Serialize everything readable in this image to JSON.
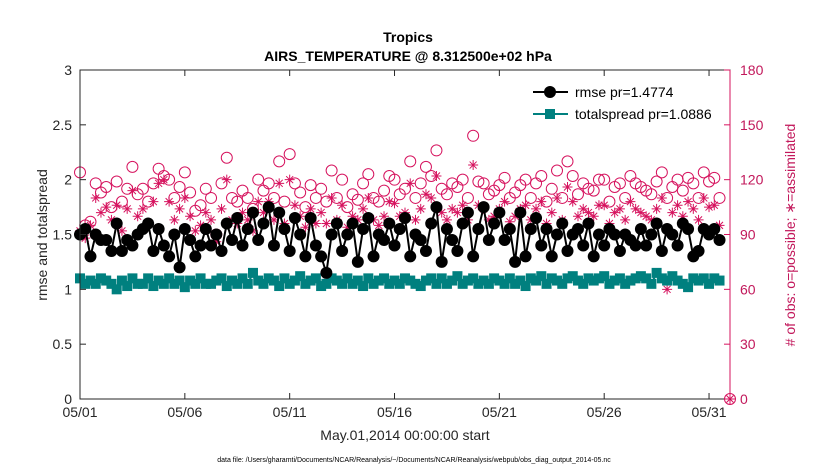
{
  "chart_data": {
    "type": "line",
    "title": "Tropics",
    "subtitle": "AIRS_TEMPERATURE @ 8.312500e+02 hPa",
    "xlabel": "May.01,2014 00:00:00 start",
    "ylabel": "rmse and totalspread",
    "y2label": "# of obs: o=possible; ∗=assimilated",
    "xlim": [
      0,
      31
    ],
    "ylim": [
      0,
      3
    ],
    "y2lim": [
      0,
      180
    ],
    "x_ticks": [
      0,
      5,
      10,
      15,
      20,
      25,
      30
    ],
    "x_tick_labels": [
      "05/01",
      "05/06",
      "05/11",
      "05/16",
      "05/21",
      "05/26",
      "05/31"
    ],
    "y_ticks": [
      0,
      0.5,
      1,
      1.5,
      2,
      2.5,
      3
    ],
    "y_tick_labels": [
      "0",
      "0.5",
      "1",
      "1.5",
      "2",
      "2.5",
      "3"
    ],
    "y2_ticks": [
      0,
      30,
      60,
      90,
      120,
      150,
      180
    ],
    "y2_tick_labels": [
      "0",
      "30",
      "60",
      "90",
      "120",
      "150",
      "180"
    ],
    "legend_position": "top-right",
    "colors": {
      "rmse": "#000000",
      "totalspread": "#00807f",
      "obs": "#d6135e",
      "axis": "#262626"
    },
    "series": [
      {
        "name": "rmse pr=1.4774",
        "marker": "circle",
        "x": [
          0.0,
          0.25,
          0.5,
          0.75,
          1.0,
          1.25,
          1.5,
          1.75,
          2.0,
          2.25,
          2.5,
          2.75,
          3.0,
          3.25,
          3.5,
          3.75,
          4.0,
          4.25,
          4.5,
          4.75,
          5.0,
          5.25,
          5.5,
          5.75,
          6.0,
          6.25,
          6.5,
          6.75,
          7.0,
          7.25,
          7.5,
          7.75,
          8.0,
          8.25,
          8.5,
          8.75,
          9.0,
          9.25,
          9.5,
          9.75,
          10.0,
          10.25,
          10.5,
          10.75,
          11.0,
          11.25,
          11.5,
          11.75,
          12.0,
          12.25,
          12.5,
          12.75,
          13.0,
          13.25,
          13.5,
          13.75,
          14.0,
          14.25,
          14.5,
          14.75,
          15.0,
          15.25,
          15.5,
          15.75,
          16.0,
          16.25,
          16.5,
          16.75,
          17.0,
          17.25,
          17.5,
          17.75,
          18.0,
          18.25,
          18.5,
          18.75,
          19.0,
          19.25,
          19.5,
          19.75,
          20.0,
          20.25,
          20.5,
          20.75,
          21.0,
          21.25,
          21.5,
          21.75,
          22.0,
          22.25,
          22.5,
          22.75,
          23.0,
          23.25,
          23.5,
          23.75,
          24.0,
          24.25,
          24.5,
          24.75,
          25.0,
          25.25,
          25.5,
          25.75,
          26.0,
          26.25,
          26.5,
          26.75,
          27.0,
          27.25,
          27.5,
          27.75,
          28.0,
          28.25,
          28.5,
          28.75,
          29.0,
          29.25,
          29.5,
          29.75,
          30.0,
          30.25,
          30.5
        ],
        "values": [
          1.5,
          1.55,
          1.3,
          1.5,
          1.45,
          1.45,
          1.35,
          1.6,
          1.35,
          1.45,
          1.4,
          1.5,
          1.55,
          1.6,
          1.35,
          1.55,
          1.4,
          1.3,
          1.5,
          1.2,
          1.55,
          1.45,
          1.3,
          1.4,
          1.55,
          1.4,
          1.5,
          1.35,
          1.6,
          1.45,
          1.65,
          1.4,
          1.55,
          1.7,
          1.45,
          1.6,
          1.75,
          1.4,
          1.7,
          1.55,
          1.35,
          1.65,
          1.5,
          1.3,
          1.65,
          1.4,
          1.3,
          1.15,
          1.5,
          1.6,
          1.35,
          1.5,
          1.6,
          1.25,
          1.55,
          1.65,
          1.3,
          1.5,
          1.45,
          1.6,
          1.4,
          1.55,
          1.65,
          1.3,
          1.5,
          1.45,
          1.35,
          1.6,
          1.75,
          1.25,
          1.55,
          1.45,
          1.35,
          1.6,
          1.7,
          1.3,
          1.55,
          1.75,
          1.45,
          1.6,
          1.7,
          1.45,
          1.55,
          1.25,
          1.7,
          1.3,
          1.55,
          1.65,
          1.4,
          1.55,
          1.3,
          1.5,
          1.6,
          1.35,
          1.5,
          1.55,
          1.4,
          1.6,
          1.3,
          1.5,
          1.4,
          1.55,
          1.5,
          1.35,
          1.5,
          1.45,
          1.4,
          1.55,
          1.4,
          1.5,
          1.6,
          1.35,
          1.55,
          1.5,
          1.4,
          1.6,
          1.55,
          1.3,
          1.35,
          1.55,
          1.5,
          1.55,
          1.45
        ]
      },
      {
        "name": "totalspread pr=1.0886",
        "marker": "square",
        "x": [
          0.0,
          0.25,
          0.5,
          0.75,
          1.0,
          1.25,
          1.5,
          1.75,
          2.0,
          2.25,
          2.5,
          2.75,
          3.0,
          3.25,
          3.5,
          3.75,
          4.0,
          4.25,
          4.5,
          4.75,
          5.0,
          5.25,
          5.5,
          5.75,
          6.0,
          6.25,
          6.5,
          6.75,
          7.0,
          7.25,
          7.5,
          7.75,
          8.0,
          8.25,
          8.5,
          8.75,
          9.0,
          9.25,
          9.5,
          9.75,
          10.0,
          10.25,
          10.5,
          10.75,
          11.0,
          11.25,
          11.5,
          11.75,
          12.0,
          12.25,
          12.5,
          12.75,
          13.0,
          13.25,
          13.5,
          13.75,
          14.0,
          14.25,
          14.5,
          14.75,
          15.0,
          15.25,
          15.5,
          15.75,
          16.0,
          16.25,
          16.5,
          16.75,
          17.0,
          17.25,
          17.5,
          17.75,
          18.0,
          18.25,
          18.5,
          18.75,
          19.0,
          19.25,
          19.5,
          19.75,
          20.0,
          20.25,
          20.5,
          20.75,
          21.0,
          21.25,
          21.5,
          21.75,
          22.0,
          22.25,
          22.5,
          22.75,
          23.0,
          23.25,
          23.5,
          23.75,
          24.0,
          24.25,
          24.5,
          24.75,
          25.0,
          25.25,
          25.5,
          25.75,
          26.0,
          26.25,
          26.5,
          26.75,
          27.0,
          27.25,
          27.5,
          27.75,
          28.0,
          28.25,
          28.5,
          28.75,
          29.0,
          29.25,
          29.5,
          29.75,
          30.0,
          30.25,
          30.5
        ],
        "values": [
          1.1,
          1.05,
          1.08,
          1.05,
          1.1,
          1.08,
          1.05,
          1.0,
          1.08,
          1.03,
          1.1,
          1.05,
          1.05,
          1.1,
          1.03,
          1.08,
          1.05,
          1.1,
          1.05,
          1.08,
          1.02,
          1.08,
          1.05,
          1.1,
          1.05,
          1.05,
          1.08,
          1.1,
          1.03,
          1.08,
          1.05,
          1.1,
          1.05,
          1.15,
          1.08,
          1.05,
          1.1,
          1.08,
          1.03,
          1.1,
          1.05,
          1.08,
          1.12,
          1.05,
          1.08,
          1.1,
          1.03,
          1.05,
          1.1,
          1.08,
          1.05,
          1.1,
          1.05,
          1.08,
          1.03,
          1.1,
          1.05,
          1.08,
          1.1,
          1.05,
          1.08,
          1.05,
          1.1,
          1.08,
          1.05,
          1.03,
          1.08,
          1.1,
          1.05,
          1.1,
          1.05,
          1.08,
          1.12,
          1.05,
          1.08,
          1.1,
          1.05,
          1.08,
          1.05,
          1.1,
          1.08,
          1.05,
          1.1,
          1.05,
          1.08,
          1.03,
          1.1,
          1.08,
          1.12,
          1.05,
          1.1,
          1.08,
          1.05,
          1.1,
          1.12,
          1.08,
          1.05,
          1.1,
          1.08,
          1.1,
          1.12,
          1.05,
          1.08,
          1.1,
          1.05,
          1.08,
          1.1,
          1.12,
          1.1,
          1.05,
          1.15,
          1.1,
          1.08,
          1.12,
          1.08,
          1.05,
          1.02,
          1.1,
          1.08,
          1.1,
          1.05,
          1.1,
          1.08
        ]
      },
      {
        "name": "# of obs possible",
        "marker": "open-circle",
        "axis": "right",
        "x": [
          0.0,
          0.25,
          0.5,
          0.75,
          1.0,
          1.25,
          1.5,
          1.75,
          2.0,
          2.25,
          2.5,
          2.75,
          3.0,
          3.25,
          3.5,
          3.75,
          4.0,
          4.25,
          4.5,
          4.75,
          5.0,
          5.25,
          5.5,
          5.75,
          6.0,
          6.25,
          6.5,
          6.75,
          7.0,
          7.25,
          7.5,
          7.75,
          8.0,
          8.25,
          8.5,
          8.75,
          9.0,
          9.25,
          9.5,
          9.75,
          10.0,
          10.25,
          10.5,
          10.75,
          11.0,
          11.25,
          11.5,
          11.75,
          12.0,
          12.25,
          12.5,
          12.75,
          13.0,
          13.25,
          13.5,
          13.75,
          14.0,
          14.25,
          14.5,
          14.75,
          15.0,
          15.25,
          15.5,
          15.75,
          16.0,
          16.25,
          16.5,
          16.75,
          17.0,
          17.25,
          17.5,
          17.75,
          18.0,
          18.25,
          18.5,
          18.75,
          19.0,
          19.25,
          19.5,
          19.75,
          20.0,
          20.25,
          20.5,
          20.75,
          21.0,
          21.25,
          21.5,
          21.75,
          22.0,
          22.25,
          22.5,
          22.75,
          23.0,
          23.25,
          23.5,
          23.75,
          24.0,
          24.25,
          24.5,
          24.75,
          25.0,
          25.25,
          25.5,
          25.75,
          26.0,
          26.25,
          26.5,
          26.75,
          27.0,
          27.25,
          27.5,
          27.75,
          28.0,
          28.25,
          28.5,
          28.75,
          29.0,
          29.25,
          29.5,
          29.75,
          30.0,
          30.25,
          30.5,
          31.0
        ],
        "values": [
          124,
          95,
          97,
          118,
          113,
          116,
          105,
          119,
          108,
          115,
          127,
          112,
          115,
          108,
          118,
          126,
          122,
          120,
          110,
          116,
          124,
          113,
          103,
          106,
          115,
          110,
          90,
          118,
          132,
          110,
          108,
          114,
          110,
          104,
          120,
          114,
          118,
          110,
          130,
          108,
          134,
          118,
          113,
          105,
          117,
          110,
          115,
          108,
          125,
          110,
          120,
          105,
          112,
          109,
          118,
          123,
          110,
          108,
          114,
          122,
          120,
          112,
          115,
          130,
          110,
          118,
          127,
          122,
          136,
          115,
          112,
          118,
          116,
          120,
          110,
          144,
          119,
          118,
          112,
          114,
          117,
          121,
          110,
          113,
          117,
          120,
          110,
          118,
          122,
          108,
          115,
          125,
          110,
          130,
          122,
          112,
          118,
          115,
          114,
          120,
          120,
          108,
          116,
          118,
          110,
          122,
          118,
          116,
          114,
          112,
          119,
          124,
          110,
          116,
          120,
          114,
          121,
          118,
          110,
          124,
          119,
          121,
          110,
          0
        ],
        "color": "#d6135e"
      },
      {
        "name": "# of obs assimilated",
        "marker": "asterisk",
        "axis": "right",
        "x": [
          0.0,
          0.25,
          0.5,
          0.75,
          1.0,
          1.25,
          1.5,
          1.75,
          2.0,
          2.25,
          2.5,
          2.75,
          3.0,
          3.25,
          3.5,
          3.75,
          4.0,
          4.25,
          4.5,
          4.75,
          5.0,
          5.25,
          5.5,
          5.75,
          6.0,
          6.25,
          6.5,
          6.75,
          7.0,
          7.25,
          7.5,
          7.75,
          8.0,
          8.25,
          8.5,
          8.75,
          9.0,
          9.25,
          9.5,
          9.75,
          10.0,
          10.25,
          10.5,
          10.75,
          11.0,
          11.25,
          11.5,
          11.75,
          12.0,
          12.25,
          12.5,
          12.75,
          13.0,
          13.25,
          13.5,
          13.75,
          14.0,
          14.25,
          14.5,
          14.75,
          15.0,
          15.25,
          15.5,
          15.75,
          16.0,
          16.25,
          16.5,
          16.75,
          17.0,
          17.25,
          17.5,
          17.75,
          18.0,
          18.25,
          18.5,
          18.75,
          19.0,
          19.25,
          19.5,
          19.75,
          20.0,
          20.25,
          20.5,
          20.75,
          21.0,
          21.25,
          21.5,
          21.75,
          22.0,
          22.25,
          22.5,
          22.75,
          23.0,
          23.25,
          23.5,
          23.75,
          24.0,
          24.25,
          24.5,
          24.75,
          25.0,
          25.25,
          25.5,
          25.75,
          26.0,
          26.25,
          26.5,
          26.75,
          27.0,
          27.25,
          27.5,
          27.75,
          28.0,
          28.25,
          28.5,
          28.75,
          29.0,
          29.25,
          29.5,
          29.75,
          30.0,
          30.25,
          30.5,
          31.0
        ],
        "values": [
          92,
          88,
          95,
          110,
          102,
          105,
          98,
          106,
          92,
          104,
          114,
          100,
          104,
          96,
          108,
          118,
          120,
          108,
          98,
          104,
          110,
          100,
          92,
          95,
          102,
          98,
          86,
          104,
          120,
          98,
          96,
          102,
          98,
          92,
          108,
          102,
          108,
          98,
          118,
          96,
          120,
          106,
          100,
          94,
          104,
          96,
          102,
          96,
          110,
          98,
          106,
          94,
          100,
          98,
          104,
          110,
          98,
          95,
          100,
          108,
          107,
          100,
          102,
          118,
          98,
          104,
          112,
          110,
          122,
          102,
          98,
          104,
          102,
          106,
          98,
          128,
          106,
          104,
          98,
          100,
          104,
          108,
          97,
          100,
          104,
          106,
          98,
          104,
          108,
          96,
          102,
          110,
          98,
          116,
          108,
          100,
          104,
          102,
          100,
          106,
          106,
          96,
          102,
          104,
          98,
          108,
          104,
          102,
          100,
          98,
          104,
          110,
          60,
          102,
          106,
          100,
          108,
          104,
          98,
          110,
          105,
          106,
          95,
          0
        ],
        "color": "#d6135e"
      }
    ]
  },
  "footer_text": "data file: /Users/gharamti/Documents/NCAR/Reanalysis/~/Documents/NCAR/Reanalysis/webpub/obs_diag_output_2014-05.nc"
}
